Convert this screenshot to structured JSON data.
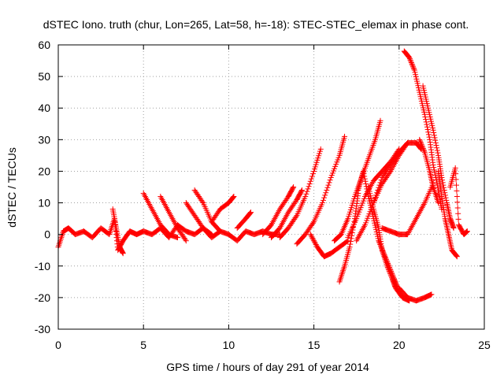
{
  "chart_data": {
    "type": "scatter",
    "title": "dSTEC Iono. truth (chur, Lon=265, Lat=58, h=-18): STEC-STEC_elemax in phase cont.",
    "xlabel": "GPS time / hours of day 291 of year 2014",
    "ylabel": "dSTEC  / TECUs",
    "xlim": [
      0,
      25
    ],
    "ylim": [
      -30,
      60
    ],
    "x_ticks": [
      0,
      5,
      10,
      15,
      20,
      25
    ],
    "y_ticks": [
      -30,
      -20,
      -10,
      0,
      10,
      20,
      30,
      40,
      50,
      60
    ],
    "grid": true,
    "legend": "none",
    "marker": "plus",
    "series_color": "#ff0000",
    "series": [
      {
        "x": [
          0.0,
          0.3,
          0.6,
          1.0,
          1.5,
          2.0,
          2.5,
          3.0,
          3.3,
          3.5,
          3.8,
          4.2,
          4.6,
          5.0,
          5.5,
          6.0,
          6.5,
          7.0,
          7.5,
          8.0,
          8.5,
          9.0,
          9.5,
          10.0,
          10.5,
          11.0,
          11.5,
          12.0,
          12.5,
          13.0
        ],
        "y": [
          -4,
          1,
          2,
          0,
          1,
          -1,
          2,
          0,
          5,
          -5,
          -2,
          1,
          0,
          1,
          0,
          2,
          -1,
          3,
          1,
          0,
          2,
          -1,
          1,
          0,
          -2,
          1,
          0,
          1,
          0,
          0
        ]
      },
      {
        "x": [
          3.2,
          3.4,
          3.6,
          3.8
        ],
        "y": [
          8,
          2,
          -4,
          -6
        ]
      },
      {
        "x": [
          5.0,
          5.5,
          6.0,
          6.5,
          7.0
        ],
        "y": [
          13,
          8,
          3,
          0,
          -1
        ]
      },
      {
        "x": [
          6.0,
          6.5,
          7.0,
          7.5
        ],
        "y": [
          12,
          7,
          2,
          -2
        ]
      },
      {
        "x": [
          7.5,
          8.0,
          8.5,
          9.0
        ],
        "y": [
          10,
          6,
          2,
          0
        ]
      },
      {
        "x": [
          8.0,
          8.5,
          9.0,
          9.5
        ],
        "y": [
          14,
          10,
          4,
          1
        ]
      },
      {
        "x": [
          9.0,
          9.5,
          10.0,
          10.3
        ],
        "y": [
          4,
          8,
          10,
          12
        ]
      },
      {
        "x": [
          10.5,
          11.0,
          11.3
        ],
        "y": [
          2,
          5,
          7
        ]
      },
      {
        "x": [
          12.0,
          12.5,
          13.0,
          13.5,
          13.8
        ],
        "y": [
          0,
          3,
          8,
          12,
          15
        ]
      },
      {
        "x": [
          12.5,
          13.0,
          13.5,
          14.0,
          14.3
        ],
        "y": [
          -1,
          2,
          7,
          11,
          14
        ]
      },
      {
        "x": [
          13.0,
          13.5,
          14.0,
          14.5,
          15.0,
          15.4
        ],
        "y": [
          -1,
          2,
          6,
          12,
          20,
          27
        ]
      },
      {
        "x": [
          14.0,
          14.5,
          15.0,
          15.5,
          16.0,
          16.5,
          16.8
        ],
        "y": [
          -3,
          0,
          4,
          10,
          18,
          25,
          31
        ]
      },
      {
        "x": [
          14.8,
          15.2,
          15.6,
          16.0,
          16.5,
          17.0
        ],
        "y": [
          0,
          -4,
          -7,
          -6,
          -4,
          -2
        ]
      },
      {
        "x": [
          16.2,
          16.6,
          17.0,
          17.4,
          17.8,
          18.2,
          18.6,
          18.9
        ],
        "y": [
          -2,
          0,
          5,
          12,
          18,
          24,
          30,
          36
        ]
      },
      {
        "x": [
          16.5,
          16.8,
          17.1,
          17.4,
          17.6
        ],
        "y": [
          -15,
          -10,
          -4,
          5,
          13
        ]
      },
      {
        "x": [
          17.0,
          17.5,
          18.0,
          18.5,
          19.0,
          19.5,
          20.0
        ],
        "y": [
          -1,
          5,
          12,
          17,
          20,
          23,
          27
        ]
      },
      {
        "x": [
          17.5,
          18.0,
          18.5,
          19.0,
          19.5,
          20.0,
          20.5
        ],
        "y": [
          -2,
          3,
          10,
          18,
          22,
          26,
          29
        ]
      },
      {
        "x": [
          17.6,
          17.9,
          18.2,
          18.5,
          18.8,
          19.1,
          19.4,
          19.7,
          19.9
        ],
        "y": [
          14,
          20,
          12,
          5,
          -2,
          -6,
          -10,
          -14,
          -17
        ]
      },
      {
        "x": [
          18.2,
          18.5,
          18.8,
          19.0,
          19.3,
          19.6,
          19.8,
          20.2,
          20.6
        ],
        "y": [
          15,
          8,
          2,
          -5,
          -10,
          -14,
          -17,
          -20,
          -21
        ]
      },
      {
        "x": [
          18.5,
          19.0,
          19.5,
          20.0,
          20.5,
          21.0,
          21.3
        ],
        "y": [
          10,
          16,
          20,
          25,
          29,
          29,
          27
        ]
      },
      {
        "x": [
          20.0,
          20.5,
          21.0,
          21.5,
          21.9
        ],
        "y": [
          -17,
          -20,
          -21,
          -20,
          -19
        ]
      },
      {
        "x": [
          20.3,
          20.6,
          20.9,
          21.2,
          21.5,
          21.8,
          22.0,
          22.3,
          22.5
        ],
        "y": [
          58,
          56,
          52,
          45,
          38,
          30,
          22,
          14,
          8
        ]
      },
      {
        "x": [
          21.4,
          21.7,
          22.0,
          22.3,
          22.5,
          22.8,
          23.0,
          23.2
        ],
        "y": [
          47,
          40,
          33,
          25,
          18,
          10,
          5,
          2
        ]
      },
      {
        "x": [
          21.2,
          21.5,
          21.8,
          22.0,
          22.3
        ],
        "y": [
          30,
          26,
          20,
          15,
          10
        ]
      },
      {
        "x": [
          22.3,
          22.5,
          22.7,
          22.9,
          23.1,
          23.4
        ],
        "y": [
          20,
          12,
          5,
          0,
          -5,
          -7
        ]
      },
      {
        "x": [
          23.0,
          23.3,
          23.5,
          23.8,
          24.0
        ],
        "y": [
          15,
          21,
          3,
          0,
          1
        ]
      },
      {
        "x": [
          19.0,
          19.5,
          20.0,
          20.5,
          21.0,
          21.5,
          22.0
        ],
        "y": [
          2,
          1,
          0,
          0,
          5,
          10,
          16
        ]
      }
    ]
  }
}
